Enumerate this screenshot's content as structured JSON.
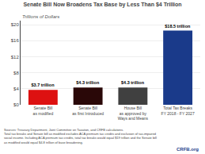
{
  "chart_data": {
    "type": "bar",
    "title": "Senate Bill Now Broadens Tax Base by Less Than $4 Trillion",
    "ylabel": "Trillions of Dollars",
    "categories": [
      "Senate Bill\nas modified",
      "Senate Bill\nas first Introduced",
      "House Bill\nas approved by\nWays and Means",
      "Total Tax Breaks\nFY 2018 - FY 2027"
    ],
    "values": [
      3.7,
      4.3,
      4.3,
      18.5
    ],
    "colors": [
      "#dd1111",
      "#2a0808",
      "#404040",
      "#1a3a8a"
    ],
    "data_labels": true,
    "value_labels": [
      "$3.7 trillion",
      "$4.3 trillion",
      "$4.3 trillion",
      "$18.5 trillion"
    ],
    "ylim": [
      0,
      21
    ],
    "yticks": [
      {
        "value": 0,
        "label": "$0"
      },
      {
        "value": 4,
        "label": "$4"
      },
      {
        "value": 8,
        "label": "$8"
      },
      {
        "value": 12,
        "label": "$12"
      },
      {
        "value": 16,
        "label": "$16"
      },
      {
        "value": 20,
        "label": "$20"
      }
    ],
    "grid": true,
    "annotations": [
      "Sources: Treasury Department, Joint Committee on Taxation, and CRFB calculations.\nTotal tax breaks and Senate bill as modified excludes ACA premium tax credits and exclusion of tax-impaired\nsocial income. Including ACA premium tax credits, total tax breaks would equal $19 trillion and the Senate bill\nas modified would equal $4.8 trillion of base broadening.",
      "CRFB.org"
    ]
  }
}
